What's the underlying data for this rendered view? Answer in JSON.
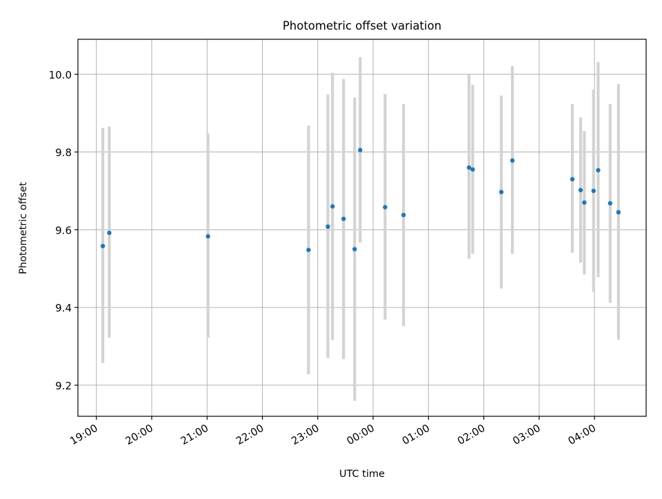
{
  "chart_data": {
    "type": "scatter",
    "title": "Photometric offset variation",
    "xlabel": "UTC time",
    "ylabel": "Photometric offset",
    "x_ticks": [
      {
        "t": 0,
        "label": "19:00"
      },
      {
        "t": 60,
        "label": "20:00"
      },
      {
        "t": 120,
        "label": "21:00"
      },
      {
        "t": 180,
        "label": "22:00"
      },
      {
        "t": 240,
        "label": "23:00"
      },
      {
        "t": 300,
        "label": "00:00"
      },
      {
        "t": 360,
        "label": "01:00"
      },
      {
        "t": 420,
        "label": "02:00"
      },
      {
        "t": 480,
        "label": "03:00"
      },
      {
        "t": 540,
        "label": "04:00"
      }
    ],
    "y_ticks": [
      {
        "v": 9.2,
        "label": "9.2"
      },
      {
        "v": 9.4,
        "label": "9.4"
      },
      {
        "v": 9.6,
        "label": "9.6"
      },
      {
        "v": 9.8,
        "label": "9.8"
      },
      {
        "v": 10.0,
        "label": "10.0"
      }
    ],
    "xlim": [
      -20,
      596
    ],
    "ylim": [
      9.12,
      10.09
    ],
    "grid": true,
    "point_color": "#1f77b4",
    "errorbar_color": "#d3d3d3",
    "points": [
      {
        "time": "19:07",
        "t": 7,
        "y": 9.558,
        "lo": 9.257,
        "hi": 9.862
      },
      {
        "time": "19:14",
        "t": 14,
        "y": 9.592,
        "lo": 9.322,
        "hi": 9.866
      },
      {
        "time": "21:01",
        "t": 121,
        "y": 9.583,
        "lo": 9.322,
        "hi": 9.848
      },
      {
        "time": "22:50",
        "t": 230,
        "y": 9.548,
        "lo": 9.228,
        "hi": 9.868
      },
      {
        "time": "23:11",
        "t": 251,
        "y": 9.608,
        "lo": 9.27,
        "hi": 9.948
      },
      {
        "time": "23:16",
        "t": 256,
        "y": 9.66,
        "lo": 9.316,
        "hi": 10.004
      },
      {
        "time": "23:28",
        "t": 268,
        "y": 9.628,
        "lo": 9.267,
        "hi": 9.988
      },
      {
        "time": "23:40",
        "t": 280,
        "y": 9.55,
        "lo": 9.16,
        "hi": 9.94
      },
      {
        "time": "23:46",
        "t": 286,
        "y": 9.805,
        "lo": 9.567,
        "hi": 10.044
      },
      {
        "time": "00:13",
        "t": 313,
        "y": 9.658,
        "lo": 9.369,
        "hi": 9.949
      },
      {
        "time": "00:33",
        "t": 333,
        "y": 9.638,
        "lo": 9.352,
        "hi": 9.923
      },
      {
        "time": "01:44",
        "t": 404,
        "y": 9.76,
        "lo": 9.525,
        "hi": 9.999
      },
      {
        "time": "01:48",
        "t": 408,
        "y": 9.755,
        "lo": 9.538,
        "hi": 9.973
      },
      {
        "time": "02:19",
        "t": 439,
        "y": 9.697,
        "lo": 9.449,
        "hi": 9.945
      },
      {
        "time": "02:31",
        "t": 451,
        "y": 9.778,
        "lo": 9.538,
        "hi": 10.021
      },
      {
        "time": "03:36",
        "t": 516,
        "y": 9.73,
        "lo": 9.541,
        "hi": 9.923
      },
      {
        "time": "03:45",
        "t": 525,
        "y": 9.702,
        "lo": 9.515,
        "hi": 9.889
      },
      {
        "time": "03:49",
        "t": 529,
        "y": 9.67,
        "lo": 9.485,
        "hi": 9.854
      },
      {
        "time": "03:59",
        "t": 539,
        "y": 9.7,
        "lo": 9.44,
        "hi": 9.961
      },
      {
        "time": "04:04",
        "t": 544,
        "y": 9.753,
        "lo": 9.478,
        "hi": 10.031
      },
      {
        "time": "04:17",
        "t": 557,
        "y": 9.668,
        "lo": 9.412,
        "hi": 9.923
      },
      {
        "time": "04:26",
        "t": 566,
        "y": 9.645,
        "lo": 9.317,
        "hi": 9.975
      }
    ]
  }
}
